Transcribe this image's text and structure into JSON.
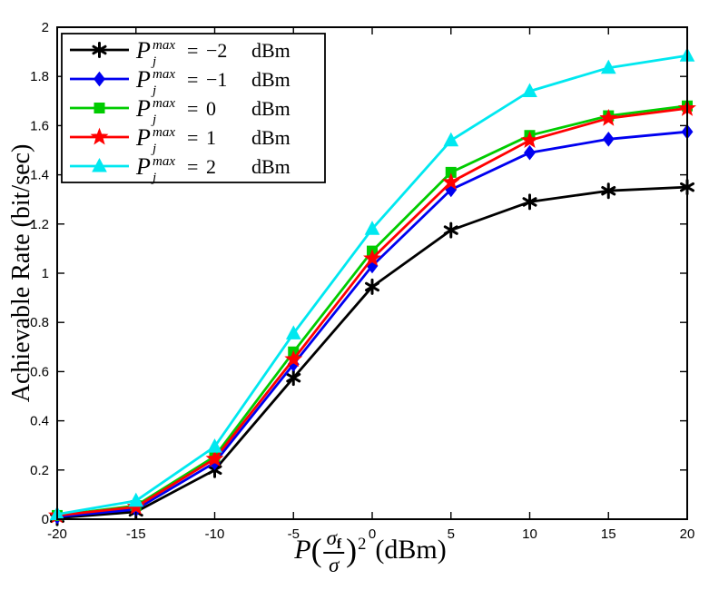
{
  "chart_data": {
    "type": "line",
    "title": "",
    "xlabel": "P((sigma_f / sigma))^2 (dBm)",
    "xlabel_parts": {
      "var": "P",
      "open_paren": "(",
      "frac_numerator": "σ",
      "frac_numerator_sub": "f",
      "frac_denominator": "σ",
      "close_paren": ")",
      "exponent": "2",
      "unit": "(dBm)"
    },
    "ylabel": "Achievable Rate (bit/sec)",
    "xlim": [
      -20,
      20
    ],
    "ylim": [
      0,
      2
    ],
    "grid": false,
    "x": [
      -20,
      -15,
      -10,
      -5,
      0,
      5,
      10,
      15,
      20
    ],
    "xticks": [
      -20,
      -15,
      -10,
      -5,
      0,
      5,
      10,
      15,
      20
    ],
    "xtick_labels": [
      "-20",
      "-15",
      "-10",
      "-5",
      "0",
      "5",
      "10",
      "15",
      "20"
    ],
    "yticks": [
      0,
      0.2,
      0.4,
      0.6,
      0.8,
      1,
      1.2,
      1.4,
      1.6,
      1.8,
      2
    ],
    "ytick_labels": [
      "0",
      "0.2",
      "0.4",
      "0.6",
      "0.8",
      "1",
      "1.2",
      "1.4",
      "1.6",
      "1.8",
      "2"
    ],
    "legend": {
      "position": "top-left",
      "var_base": "P",
      "var_sup": "max",
      "var_sub": "j",
      "equals": "=",
      "unit": "dBm"
    },
    "series": [
      {
        "name": "Pj^max = -2 dBm",
        "label_value": "−2",
        "color": "#000000",
        "marker": "asterisk",
        "values": [
          0.005,
          0.03,
          0.2,
          0.575,
          0.945,
          1.175,
          1.29,
          1.335,
          1.35
        ]
      },
      {
        "name": "Pj^max = -1 dBm",
        "label_value": "−1",
        "color": "#0000F0",
        "marker": "diamond",
        "values": [
          0.01,
          0.04,
          0.23,
          0.63,
          1.03,
          1.34,
          1.49,
          1.545,
          1.575
        ]
      },
      {
        "name": "Pj^max = 0 dBm",
        "label_value": "0",
        "color": "#00CC00",
        "marker": "square",
        "values": [
          0.015,
          0.055,
          0.255,
          0.68,
          1.09,
          1.41,
          1.56,
          1.64,
          1.68
        ]
      },
      {
        "name": "Pj^max = 1 dBm",
        "label_value": "1",
        "color": "#FF0000",
        "marker": "pentagram",
        "values": [
          0.015,
          0.05,
          0.245,
          0.65,
          1.06,
          1.37,
          1.54,
          1.63,
          1.67
        ]
      },
      {
        "name": "Pj^max = 2 dBm",
        "label_value": "2",
        "color": "#00E8F0",
        "marker": "triangle-up",
        "values": [
          0.02,
          0.075,
          0.295,
          0.755,
          1.18,
          1.54,
          1.74,
          1.835,
          1.885
        ]
      }
    ]
  }
}
